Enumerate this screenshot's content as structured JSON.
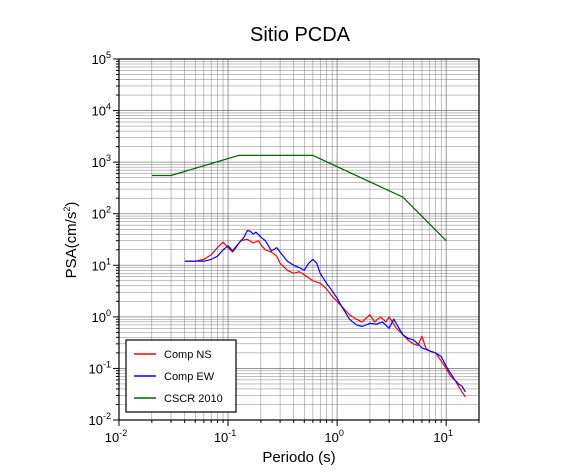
{
  "chart_data": {
    "type": "line",
    "title": "Sitio PCDA",
    "xlabel": "Periodo (s)",
    "ylabel_parts": {
      "main": "PSA(cm/s",
      "sup": "2",
      "close": ")"
    },
    "xscale": "log",
    "yscale": "log",
    "xlim": [
      0.01,
      20
    ],
    "ylim": [
      0.01,
      100000
    ],
    "grid": true,
    "legend_position": "bottom-left",
    "x_ticks": [
      {
        "base": "10",
        "exp": "-2",
        "value": 0.01
      },
      {
        "base": "10",
        "exp": "-1",
        "value": 0.1
      },
      {
        "base": "10",
        "exp": "0",
        "value": 1
      },
      {
        "base": "10",
        "exp": "1",
        "value": 10
      }
    ],
    "y_ticks": [
      {
        "base": "10",
        "exp": "-2",
        "value": 0.01
      },
      {
        "base": "10",
        "exp": "-1",
        "value": 0.1
      },
      {
        "base": "10",
        "exp": "0",
        "value": 1
      },
      {
        "base": "10",
        "exp": "1",
        "value": 10
      },
      {
        "base": "10",
        "exp": "2",
        "value": 100
      },
      {
        "base": "10",
        "exp": "3",
        "value": 1000
      },
      {
        "base": "10",
        "exp": "4",
        "value": 10000
      },
      {
        "base": "10",
        "exp": "5",
        "value": 100000
      }
    ],
    "series": [
      {
        "name": "Comp NS",
        "color": "#ff0000",
        "points": [
          [
            0.04,
            12
          ],
          [
            0.05,
            12
          ],
          [
            0.06,
            13
          ],
          [
            0.07,
            16
          ],
          [
            0.08,
            22
          ],
          [
            0.09,
            28
          ],
          [
            0.1,
            22
          ],
          [
            0.11,
            18
          ],
          [
            0.12,
            23
          ],
          [
            0.13,
            30
          ],
          [
            0.15,
            32
          ],
          [
            0.17,
            27
          ],
          [
            0.19,
            30
          ],
          [
            0.2,
            25
          ],
          [
            0.22,
            20
          ],
          [
            0.25,
            18
          ],
          [
            0.28,
            15
          ],
          [
            0.3,
            11
          ],
          [
            0.35,
            8
          ],
          [
            0.4,
            7
          ],
          [
            0.45,
            7.5
          ],
          [
            0.5,
            6.5
          ],
          [
            0.6,
            5
          ],
          [
            0.7,
            4.5
          ],
          [
            0.8,
            3.5
          ],
          [
            0.9,
            2.5
          ],
          [
            1.0,
            2.0
          ],
          [
            1.1,
            1.6
          ],
          [
            1.3,
            1.1
          ],
          [
            1.5,
            0.9
          ],
          [
            1.7,
            0.8
          ],
          [
            2.0,
            1.1
          ],
          [
            2.2,
            0.8
          ],
          [
            2.5,
            1.0
          ],
          [
            2.8,
            0.8
          ],
          [
            3.0,
            1.0
          ],
          [
            3.5,
            0.6
          ],
          [
            4.0,
            0.45
          ],
          [
            4.5,
            0.35
          ],
          [
            5.0,
            0.3
          ],
          [
            5.5,
            0.28
          ],
          [
            6.0,
            0.42
          ],
          [
            6.5,
            0.25
          ],
          [
            7.0,
            0.22
          ],
          [
            8.0,
            0.2
          ],
          [
            9.0,
            0.14
          ],
          [
            10.0,
            0.1
          ],
          [
            11.0,
            0.07
          ],
          [
            12.0,
            0.06
          ],
          [
            13.0,
            0.045
          ],
          [
            14.0,
            0.035
          ],
          [
            15.0,
            0.028
          ]
        ]
      },
      {
        "name": "Comp EW",
        "color": "#0000ff",
        "points": [
          [
            0.04,
            12
          ],
          [
            0.05,
            12
          ],
          [
            0.06,
            12
          ],
          [
            0.07,
            13
          ],
          [
            0.08,
            15
          ],
          [
            0.09,
            20
          ],
          [
            0.1,
            24
          ],
          [
            0.11,
            19
          ],
          [
            0.12,
            24
          ],
          [
            0.13,
            29
          ],
          [
            0.14,
            35
          ],
          [
            0.15,
            47
          ],
          [
            0.16,
            46
          ],
          [
            0.17,
            40
          ],
          [
            0.18,
            44
          ],
          [
            0.2,
            35
          ],
          [
            0.22,
            30
          ],
          [
            0.25,
            19
          ],
          [
            0.28,
            22
          ],
          [
            0.3,
            18
          ],
          [
            0.35,
            12
          ],
          [
            0.4,
            10
          ],
          [
            0.45,
            9
          ],
          [
            0.5,
            8
          ],
          [
            0.55,
            11
          ],
          [
            0.6,
            13
          ],
          [
            0.65,
            11
          ],
          [
            0.7,
            7
          ],
          [
            0.8,
            4.5
          ],
          [
            0.9,
            3.2
          ],
          [
            1.0,
            2.3
          ],
          [
            1.1,
            1.6
          ],
          [
            1.3,
            0.9
          ],
          [
            1.5,
            0.7
          ],
          [
            1.7,
            0.65
          ],
          [
            2.0,
            0.75
          ],
          [
            2.3,
            0.72
          ],
          [
            2.6,
            0.8
          ],
          [
            3.0,
            0.6
          ],
          [
            3.3,
            0.9
          ],
          [
            3.7,
            0.6
          ],
          [
            4.0,
            0.45
          ],
          [
            4.5,
            0.38
          ],
          [
            5.0,
            0.36
          ],
          [
            5.5,
            0.3
          ],
          [
            6.0,
            0.25
          ],
          [
            7.0,
            0.22
          ],
          [
            8.0,
            0.2
          ],
          [
            9.0,
            0.17
          ],
          [
            10.0,
            0.11
          ],
          [
            11.0,
            0.08
          ],
          [
            12.0,
            0.06
          ],
          [
            13.0,
            0.05
          ],
          [
            14.0,
            0.045
          ],
          [
            15.0,
            0.035
          ]
        ]
      },
      {
        "name": "CSCR 2010",
        "color": "#006400",
        "points": [
          [
            0.02,
            550
          ],
          [
            0.03,
            550
          ],
          [
            0.125,
            1350
          ],
          [
            0.6,
            1350
          ],
          [
            4.0,
            210
          ],
          [
            10.0,
            30
          ]
        ]
      }
    ]
  }
}
